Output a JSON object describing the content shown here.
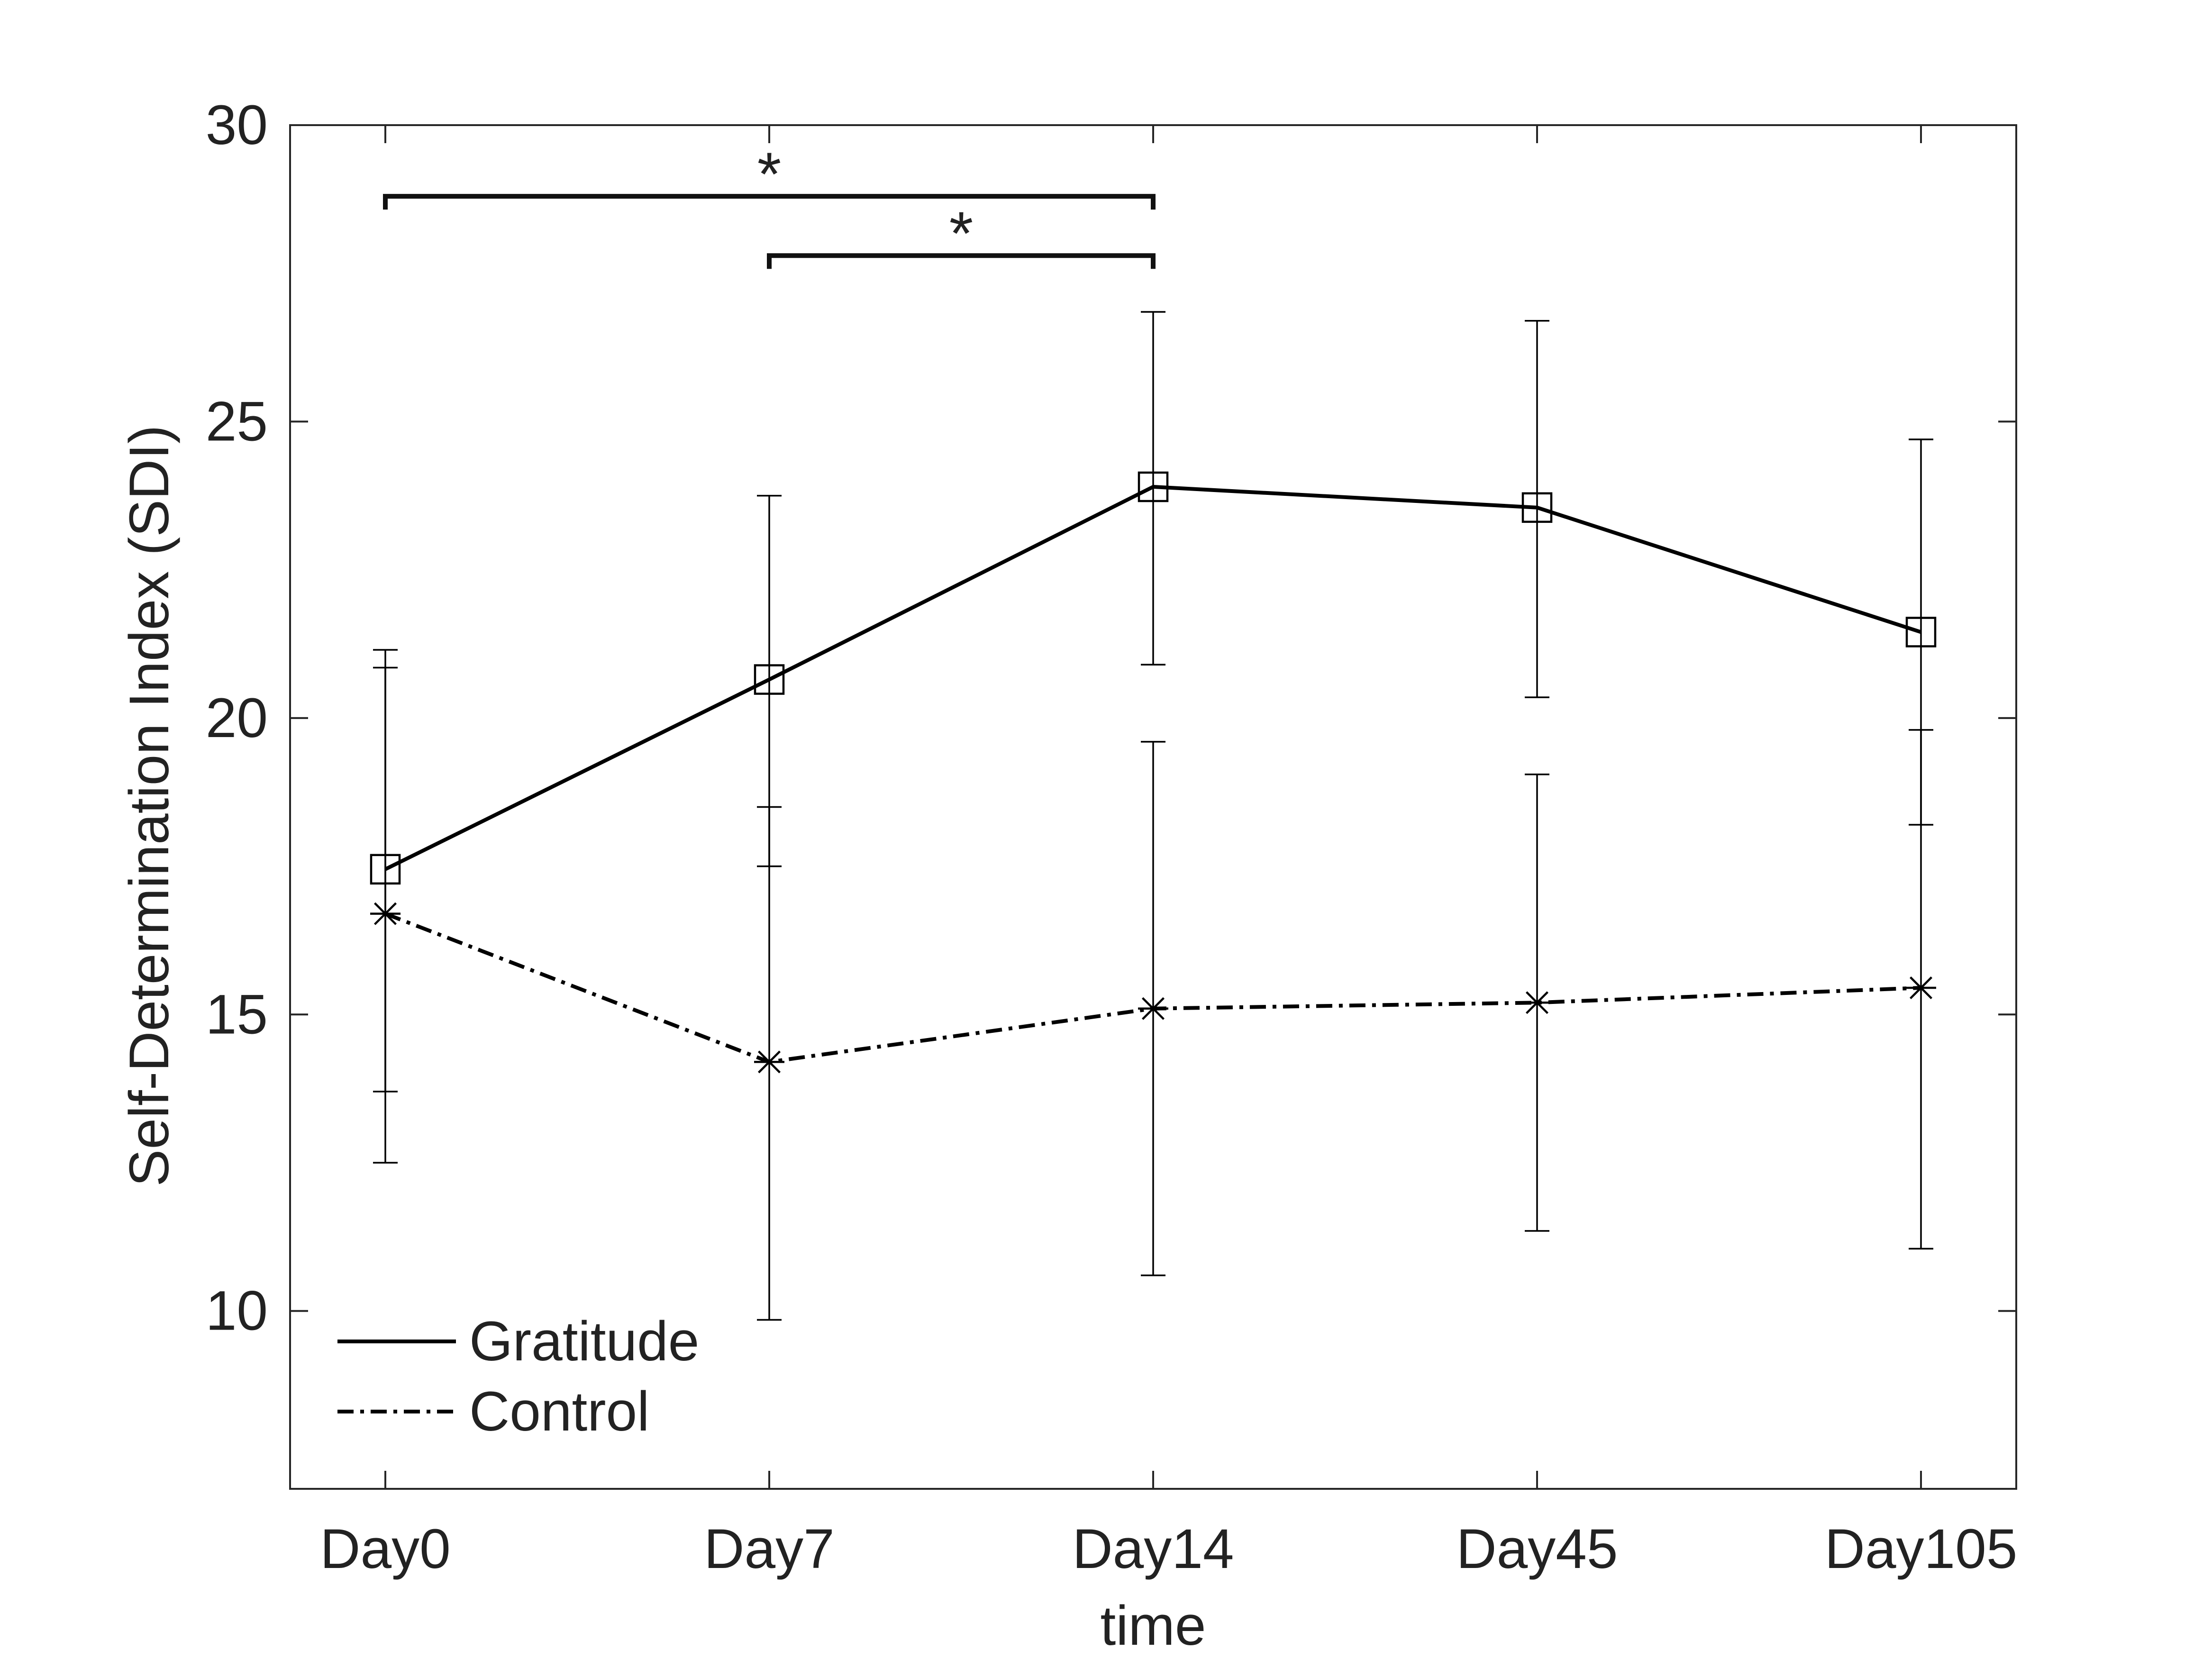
{
  "chart_data": {
    "type": "line",
    "categories": [
      "Day0",
      "Day7",
      "Day14",
      "Day45",
      "Day105"
    ],
    "xlabel": "time",
    "ylabel": "Self-Determination Index (SDI)",
    "ylim": [
      7,
      30
    ],
    "yticks": [
      10,
      15,
      20,
      25,
      30
    ],
    "grid": false,
    "legend_placement": "bottom-left",
    "series": [
      {
        "name": "Gratitude",
        "marker": "square",
        "line_style": "solid",
        "color": "#000000",
        "values": [
          17.45,
          20.65,
          23.9,
          23.55,
          21.45
        ],
        "error_low": [
          12.5,
          17.5,
          20.9,
          20.35,
          18.2
        ],
        "error_high": [
          21.15,
          23.75,
          26.85,
          26.7,
          24.7
        ]
      },
      {
        "name": "Control",
        "marker": "asterisk",
        "line_style": "dash-dot",
        "color": "#000000",
        "values": [
          16.7,
          14.2,
          15.1,
          15.2,
          15.45
        ],
        "error_low": [
          13.7,
          9.85,
          10.6,
          11.35,
          11.05
        ],
        "error_high": [
          20.85,
          18.5,
          19.6,
          19.05,
          19.8
        ]
      }
    ],
    "annotations": [
      {
        "text": "*",
        "from": "Day0",
        "to": "Day14",
        "y": 28.8
      },
      {
        "text": "*",
        "from": "Day7",
        "to": "Day14",
        "y": 27.8
      }
    ]
  }
}
